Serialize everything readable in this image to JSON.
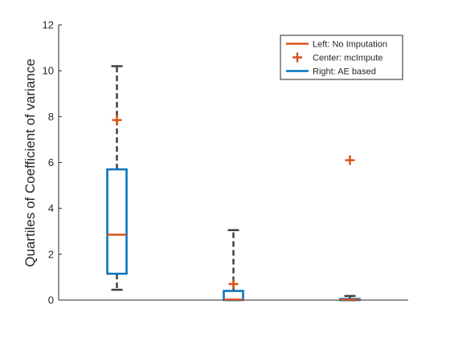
{
  "chart_data": {
    "type": "box",
    "ylabel": "Quartiles of Coefficient of variance",
    "xlabel": "",
    "ylim": [
      0,
      12
    ],
    "yticks": [
      0,
      2,
      4,
      6,
      8,
      10,
      12
    ],
    "grid": false,
    "legend_position": "top-right",
    "legend": [
      {
        "label": "Left: No Imputation",
        "marker": "line",
        "color": "#D95319"
      },
      {
        "label": "Center: mcImpute",
        "marker": "plus",
        "color": "#D95319"
      },
      {
        "label": "Right: AE based",
        "marker": "line",
        "color": "#0072BD"
      }
    ],
    "boxes": [
      {
        "q1": 1.15,
        "median": 2.85,
        "q3": 5.7,
        "whisker_low": 0.45,
        "whisker_high": 10.2,
        "outliers": [
          7.85
        ]
      },
      {
        "q1": 0.0,
        "median": 0.02,
        "q3": 0.4,
        "whisker_low": 0.0,
        "whisker_high": 3.05,
        "outliers": [
          0.7
        ]
      },
      {
        "q1": 0.0,
        "median": 0.02,
        "q3": 0.05,
        "whisker_low": 0.0,
        "whisker_high": 0.18,
        "outliers": [
          6.1
        ]
      }
    ],
    "colors": {
      "box": "#0072BD",
      "median": "#D95319",
      "outlier": "#D95319",
      "whisker": "#404040",
      "axis": "#262626"
    }
  }
}
